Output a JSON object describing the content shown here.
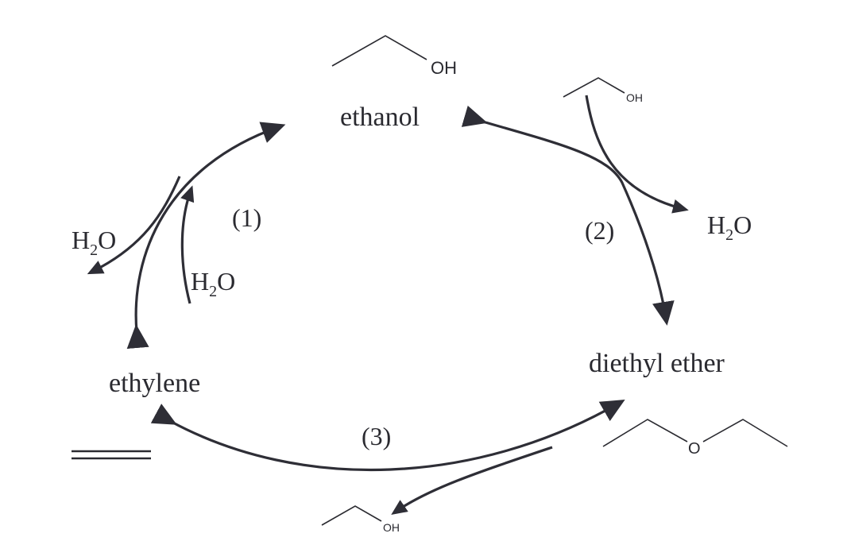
{
  "compounds": {
    "ethanol": "ethanol",
    "ethylene": "ethylene",
    "diethyl_ether": "diethyl ether"
  },
  "steps": {
    "step1": "(1)",
    "step2": "(2)",
    "step3": "(3)"
  },
  "species": {
    "water_left_out": {
      "main": "H",
      "sub": "2",
      "rest": "O"
    },
    "water_left_in": {
      "main": "H",
      "sub": "2",
      "rest": "O"
    },
    "water_right": {
      "main": "H",
      "sub": "2",
      "rest": "O"
    }
  },
  "atoms": {
    "oh": "OH",
    "o": "O"
  },
  "colors": {
    "ink": "#2a2a30",
    "arrow": "#2e2e36"
  }
}
